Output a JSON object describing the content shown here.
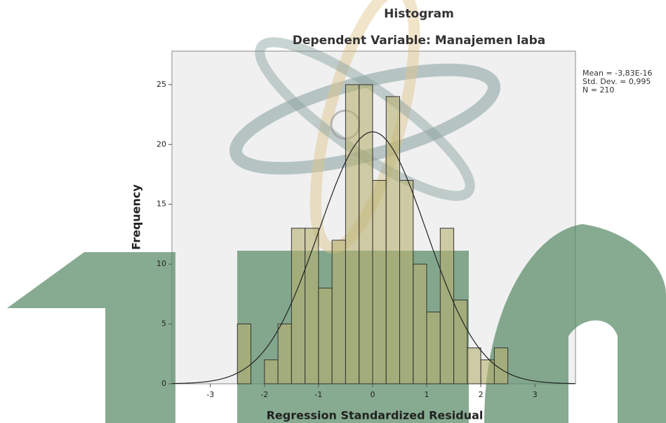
{
  "chart_data": {
    "type": "histogram",
    "title": "Histogram",
    "subtitle": "Dependent Variable: Manajemen laba",
    "x_label": "Regression Standardized Residual",
    "y_label": "Frequency",
    "bins": [
      -2.5,
      -2.25,
      -2.0,
      -1.75,
      -1.5,
      -1.25,
      -1.0,
      -0.75,
      -0.5,
      -0.25,
      0.0,
      0.25,
      0.5,
      0.75,
      1.0,
      1.25,
      1.5,
      1.75,
      2.0,
      2.25,
      2.5
    ],
    "values": [
      5,
      0,
      2,
      5,
      13,
      13,
      8,
      12,
      25,
      25,
      17,
      24,
      17,
      10,
      6,
      13,
      7,
      3,
      2,
      3
    ],
    "color": "#b8b070",
    "curve_color": "#222222",
    "xlim": [
      -3.71,
      3.75
    ],
    "ylim": [
      0,
      27.8
    ],
    "xticks": [
      -3,
      -2,
      -1,
      0,
      1,
      2,
      3
    ],
    "yticks": [
      0,
      5,
      10,
      15,
      20,
      25
    ],
    "stats": [
      {
        "value": -3.83e-16,
        "label": "Mean = -3,83E-16"
      },
      {
        "value": 0.995,
        "label": "Std. Dev. = 0,995"
      },
      {
        "value": 210,
        "label": "N = 210"
      }
    ]
  }
}
